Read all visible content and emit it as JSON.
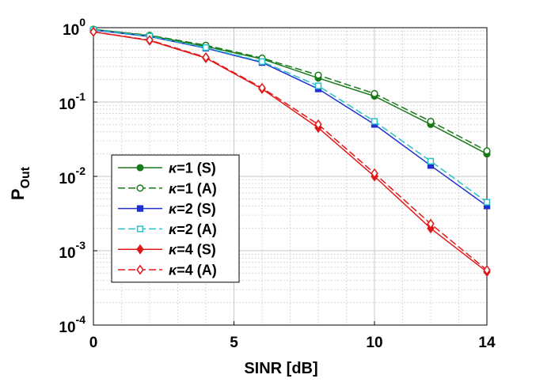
{
  "chart_data": {
    "type": "line",
    "title": "",
    "xlabel": "SINR [dB]",
    "ylabel": {
      "main": "P",
      "sub": "Out"
    },
    "xlim": [
      0,
      14
    ],
    "ylim": [
      0.0001,
      1
    ],
    "yscale": "log",
    "grid": true,
    "legend_position": "lower-left",
    "x_ticks": [
      {
        "value": 0,
        "label": "0"
      },
      {
        "value": 5,
        "label": "5"
      },
      {
        "value": 10,
        "label": "10"
      },
      {
        "value": 14,
        "label": "14"
      }
    ],
    "y_ticks": [
      {
        "value": 1,
        "base": "10",
        "exp": "0"
      },
      {
        "value": 0.1,
        "base": "10",
        "exp": "-1"
      },
      {
        "value": 0.01,
        "base": "10",
        "exp": "-2"
      },
      {
        "value": 0.001,
        "base": "10",
        "exp": "-3"
      },
      {
        "value": 0.0001,
        "base": "10",
        "exp": "-4"
      }
    ],
    "series": [
      {
        "name_prefix": "κ",
        "name_rest": "=1 (S)",
        "color": "#1a7a1a",
        "marker": "circle",
        "filled": true,
        "dashed": false,
        "x": [
          0,
          2,
          4,
          6,
          8,
          10,
          12,
          14
        ],
        "y": [
          0.95,
          0.78,
          0.56,
          0.38,
          0.21,
          0.12,
          0.05,
          0.02
        ]
      },
      {
        "name_prefix": "κ",
        "name_rest": "=1 (A)",
        "color": "#1a7a1a",
        "marker": "circle",
        "filled": false,
        "dashed": true,
        "x": [
          0,
          2,
          4,
          6,
          8,
          10,
          12,
          14
        ],
        "y": [
          0.95,
          0.79,
          0.58,
          0.39,
          0.23,
          0.13,
          0.055,
          0.022
        ]
      },
      {
        "name_prefix": "κ",
        "name_rest": "=2 (S)",
        "color": "#1f2fd0",
        "marker": "square",
        "filled": true,
        "dashed": false,
        "x": [
          0,
          2,
          4,
          6,
          8,
          10,
          12,
          14
        ],
        "y": [
          0.93,
          0.76,
          0.53,
          0.34,
          0.15,
          0.05,
          0.014,
          0.004
        ]
      },
      {
        "name_prefix": "κ",
        "name_rest": "=2 (A)",
        "color": "#27c2c8",
        "marker": "square",
        "filled": false,
        "dashed": true,
        "x": [
          0,
          2,
          4,
          6,
          8,
          10,
          12,
          14
        ],
        "y": [
          0.94,
          0.77,
          0.54,
          0.35,
          0.165,
          0.055,
          0.016,
          0.0045
        ]
      },
      {
        "name_prefix": "κ",
        "name_rest": "=4 (S)",
        "color": "#e01818",
        "marker": "diamond",
        "filled": true,
        "dashed": false,
        "x": [
          0,
          2,
          4,
          6,
          8,
          10,
          12,
          14
        ],
        "y": [
          0.88,
          0.67,
          0.39,
          0.15,
          0.045,
          0.01,
          0.002,
          0.00052
        ]
      },
      {
        "name_prefix": "κ",
        "name_rest": "=4 (A)",
        "color": "#e01818",
        "marker": "diamond",
        "filled": false,
        "dashed": true,
        "x": [
          0,
          2,
          4,
          6,
          8,
          10,
          12,
          14
        ],
        "y": [
          0.88,
          0.68,
          0.4,
          0.155,
          0.05,
          0.011,
          0.0023,
          0.00055
        ]
      }
    ]
  }
}
